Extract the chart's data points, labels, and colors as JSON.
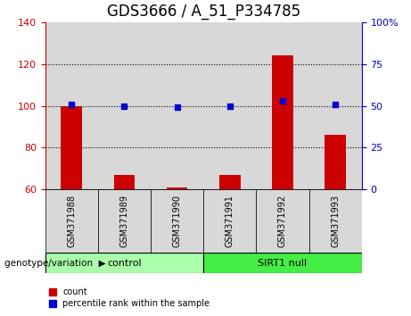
{
  "title": "GDS3666 / A_51_P334785",
  "samples": [
    "GSM371988",
    "GSM371989",
    "GSM371990",
    "GSM371991",
    "GSM371992",
    "GSM371993"
  ],
  "bar_values": [
    100,
    67,
    61,
    67,
    124,
    86
  ],
  "percentile_values": [
    51,
    50,
    49,
    50,
    53,
    51
  ],
  "bar_color": "#cc0000",
  "percentile_color": "#0000cc",
  "ylim_left": [
    60,
    140
  ],
  "ylim_right": [
    0,
    100
  ],
  "yticks_left": [
    60,
    80,
    100,
    120,
    140
  ],
  "yticks_right": [
    0,
    25,
    50,
    75,
    100
  ],
  "groups": [
    {
      "label": "control",
      "n": 3,
      "color": "#aaffaa"
    },
    {
      "label": "SIRT1 null",
      "n": 3,
      "color": "#44ee44"
    }
  ],
  "group_label": "genotype/variation",
  "legend_count": "count",
  "legend_percentile": "percentile rank within the sample",
  "bar_width": 0.4,
  "col_bg_color": "#d8d8d8",
  "grid_dotted_at": [
    80,
    100,
    120
  ],
  "title_fontsize": 12,
  "tick_fontsize": 8
}
